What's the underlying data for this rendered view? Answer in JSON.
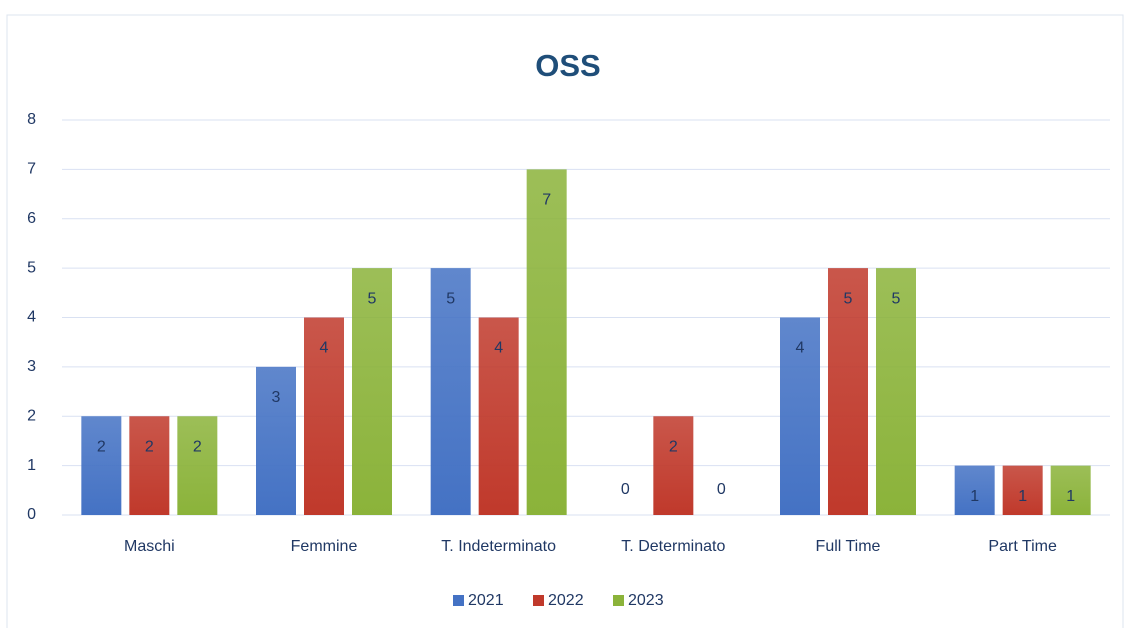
{
  "chart_data": {
    "type": "bar",
    "title": "OSS",
    "categories": [
      "Maschi",
      "Femmine",
      "T. Indeterminato",
      "T. Determinato",
      "Full Time",
      "Part Time"
    ],
    "series": [
      {
        "name": "2021",
        "color": "#4472c4",
        "values": [
          2,
          3,
          5,
          0,
          4,
          1
        ]
      },
      {
        "name": "2022",
        "color": "#c0392b",
        "values": [
          2,
          4,
          4,
          2,
          5,
          1
        ]
      },
      {
        "name": "2023",
        "color": "#8bb33a",
        "values": [
          2,
          5,
          7,
          0,
          5,
          1
        ]
      }
    ],
    "ylim": [
      0,
      8
    ],
    "yticks": [
      0,
      1,
      2,
      3,
      4,
      5,
      6,
      7,
      8
    ],
    "grid": true,
    "legend": "bottom"
  }
}
